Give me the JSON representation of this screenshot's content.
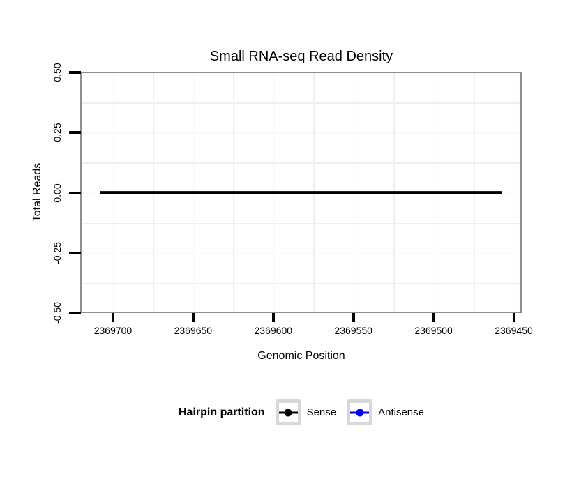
{
  "chart_data": {
    "type": "line",
    "title": "Small RNA-seq Read Density",
    "xlabel": "Genomic Position",
    "ylabel": "Total Reads",
    "x_axis": {
      "reversed": true,
      "lim": [
        2369720,
        2369445
      ],
      "ticks": [
        2369700,
        2369650,
        2369600,
        2369550,
        2369500,
        2369450
      ],
      "tick_labels": [
        "2369700",
        "2369650",
        "2369600",
        "2369550",
        "2369500",
        "2369450"
      ]
    },
    "y_axis": {
      "lim": [
        -0.5,
        0.5
      ],
      "ticks": [
        0.5,
        0.25,
        0,
        -0.25,
        -0.5
      ],
      "tick_labels": [
        "0.50",
        "0.25",
        "0.00",
        "-0.25",
        "-0.50"
      ]
    },
    "grid": {
      "minor_visible": true,
      "major_visible": false,
      "position": "panel"
    },
    "series": [
      {
        "name": "Sense",
        "color": "#000000",
        "x": [
          2369708,
          2369457
        ],
        "y": [
          0,
          0
        ]
      },
      {
        "name": "Antisense",
        "color": "#0000EE",
        "x": [
          2369708,
          2369457
        ],
        "y": [
          0,
          0
        ]
      }
    ],
    "legend": {
      "title": "Hairpin partition",
      "position": "bottom",
      "entries": [
        {
          "label": "Sense",
          "color": "#000000"
        },
        {
          "label": "Antisense",
          "color": "#0000EE"
        }
      ]
    }
  },
  "colors": {
    "panel_border": "#8F8F8F",
    "grid_minor": "#EFEFEF",
    "grid_major": "#FAFAFA",
    "tick": "#000000",
    "line_underlay": "#14148C",
    "legend_key_border": "#D8D8D8",
    "background": "#FFFFFF"
  }
}
